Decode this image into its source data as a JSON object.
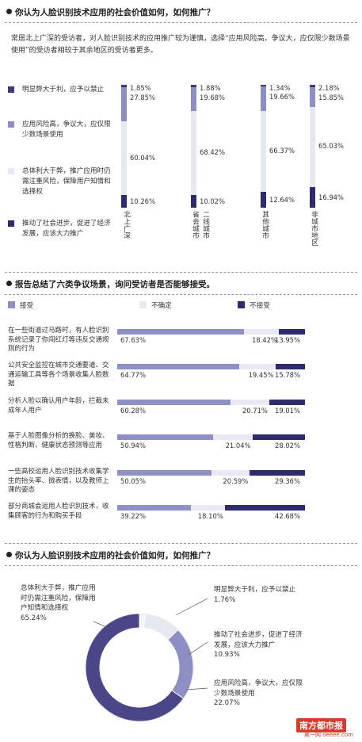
{
  "colors": {
    "strong_oppose": "#3e3a7a",
    "risky": "#8c8ec4",
    "support_caution": "#e6e8f2",
    "promote": "#2e2a6e",
    "accept": "#8f90c6",
    "unsure": "#e8e9f2",
    "reject": "#2f2b6e"
  },
  "section1": {
    "title": "你认为人脸识别技术应用的社会价值如何，如何推广？",
    "intro": "常居北上广深的受访者，对人脸识别技术的应用推广较为谨慎，选择“应用风险高，争议大，应仅限少数场景使用”的受访者相较于其余地区的受访者更多。",
    "legend": [
      {
        "label": "明显弊大于利，应予以禁止",
        "color": "#3e3a7a"
      },
      {
        "label": "应用风险高，争议大，应仅限少数场景使用",
        "color": "#8c8ec4"
      },
      {
        "label": "总体利大于弊，推广应用时仍需注重风险，保障用户知情和选择权",
        "color": "#e6e8f2"
      },
      {
        "label": "推动了社会进步，促进了经济发展，应该大力推广",
        "color": "#2e2a6e"
      }
    ]
  },
  "section2": {
    "title": "报告总结了六类争议场景，询问受访者是否能够接受。",
    "legend": [
      {
        "label": "接受",
        "color": "#8f90c6"
      },
      {
        "label": "不确定",
        "color": "#e8e9f2"
      },
      {
        "label": "不接受",
        "color": "#2f2b6e"
      }
    ]
  },
  "section3": {
    "title": "你认为人脸识别技术应用的社会价值如何，如何推广？",
    "labels": [
      {
        "text": "总体利大于弊，推广应用时仍需注重风险，保障用户知情和选择权",
        "value": "65.24%"
      },
      {
        "text": "明显弊大于利，应予以禁止",
        "value": "1.76%"
      },
      {
        "text": "推动了社会进步，促进了经济发展，应该大力推广",
        "value": "10.93%"
      },
      {
        "text": "应用风险高，争议大，应仅限少数场景使用",
        "value": "22.07%"
      }
    ]
  },
  "logo": {
    "name": "南方都市报",
    "site": "奥一网 oeeee.com"
  },
  "chart_data": [
    {
      "type": "bar",
      "stacked": true,
      "orientation": "vertical",
      "categories": [
        "北上广深",
        "省会城市/二线城市",
        "其他城市",
        "非城市地区"
      ],
      "series": [
        {
          "name": "明显弊大于利，应予以禁止",
          "values": [
            1.85,
            1.88,
            1.34,
            2.18
          ]
        },
        {
          "name": "应用风险高，争议大，应仅限少数场景使用",
          "values": [
            27.85,
            19.68,
            19.66,
            15.85
          ]
        },
        {
          "name": "总体利大于弊，推广应用时仍需注重风险，保障用户知情和选择权",
          "values": [
            60.04,
            68.42,
            66.37,
            65.03
          ]
        },
        {
          "name": "推动了社会进步，促进了经济发展，应该大力推广",
          "values": [
            10.26,
            10.02,
            12.64,
            16.94
          ]
        }
      ],
      "labels": [
        [
          "1.85%",
          "27.85%",
          "60.04%",
          "10.26%"
        ],
        [
          "1.88%",
          "19.68%",
          "68.42%",
          "10.02%"
        ],
        [
          "1.34%",
          "19.66%",
          "66.37%",
          "12.64%"
        ],
        [
          "2.18%",
          "15.85%",
          "65.03%",
          "16.94%"
        ]
      ]
    },
    {
      "type": "bar",
      "stacked": true,
      "orientation": "horizontal",
      "categories": [
        "在一些街道过马路时，有人脸识别系统记录了你闯红灯等违反交通规则的行为",
        "公共安全监控在城市交通要道、交通运输工具等各个场景收集人脸数据",
        "分析人脸以确认用户年龄，拦截未成年人用户",
        "基于人脸图像分析的换脸、美妆、性格判断、健康状态预测等应用",
        "一些高校运用人脸识别技术收集学生的抬头率、微表情，以及教师上课的姿态",
        "部分商城会运用人脸识别技术，收集顾客的行为和购买手段"
      ],
      "series": [
        {
          "name": "接受",
          "values": [
            67.63,
            64.77,
            60.28,
            50.94,
            50.05,
            39.22
          ]
        },
        {
          "name": "不确定",
          "values": [
            18.42,
            19.45,
            20.71,
            21.04,
            20.59,
            18.1
          ]
        },
        {
          "name": "不接受",
          "values": [
            13.95,
            15.78,
            19.01,
            28.02,
            29.36,
            42.68
          ]
        }
      ],
      "labels": [
        [
          "67.63%",
          "18.42%",
          "13.95%"
        ],
        [
          "64.77%",
          "19.45%",
          "15.78%"
        ],
        [
          "60.28%",
          "20.71%",
          "19.01%"
        ],
        [
          "50.94%",
          "21.04%",
          "28.02%"
        ],
        [
          "50.05%",
          "20.59%",
          "29.36%"
        ],
        [
          "39.22%",
          "18.10%",
          "42.68%"
        ]
      ]
    },
    {
      "type": "pie",
      "donut": true,
      "categories": [
        "总体利大于弊，推广应用时仍需注重风险，保障用户知情和选择权",
        "明显弊大于利，应予以禁止",
        "推动了社会进步，促进了经济发展，应该大力推广",
        "应用风险高，争议大，应仅限少数场景使用"
      ],
      "values": [
        65.24,
        1.76,
        10.93,
        22.07
      ],
      "colors": [
        "#4a4688",
        "#f4f4f8",
        "#e6e8f2",
        "#8c8ec4"
      ]
    }
  ]
}
